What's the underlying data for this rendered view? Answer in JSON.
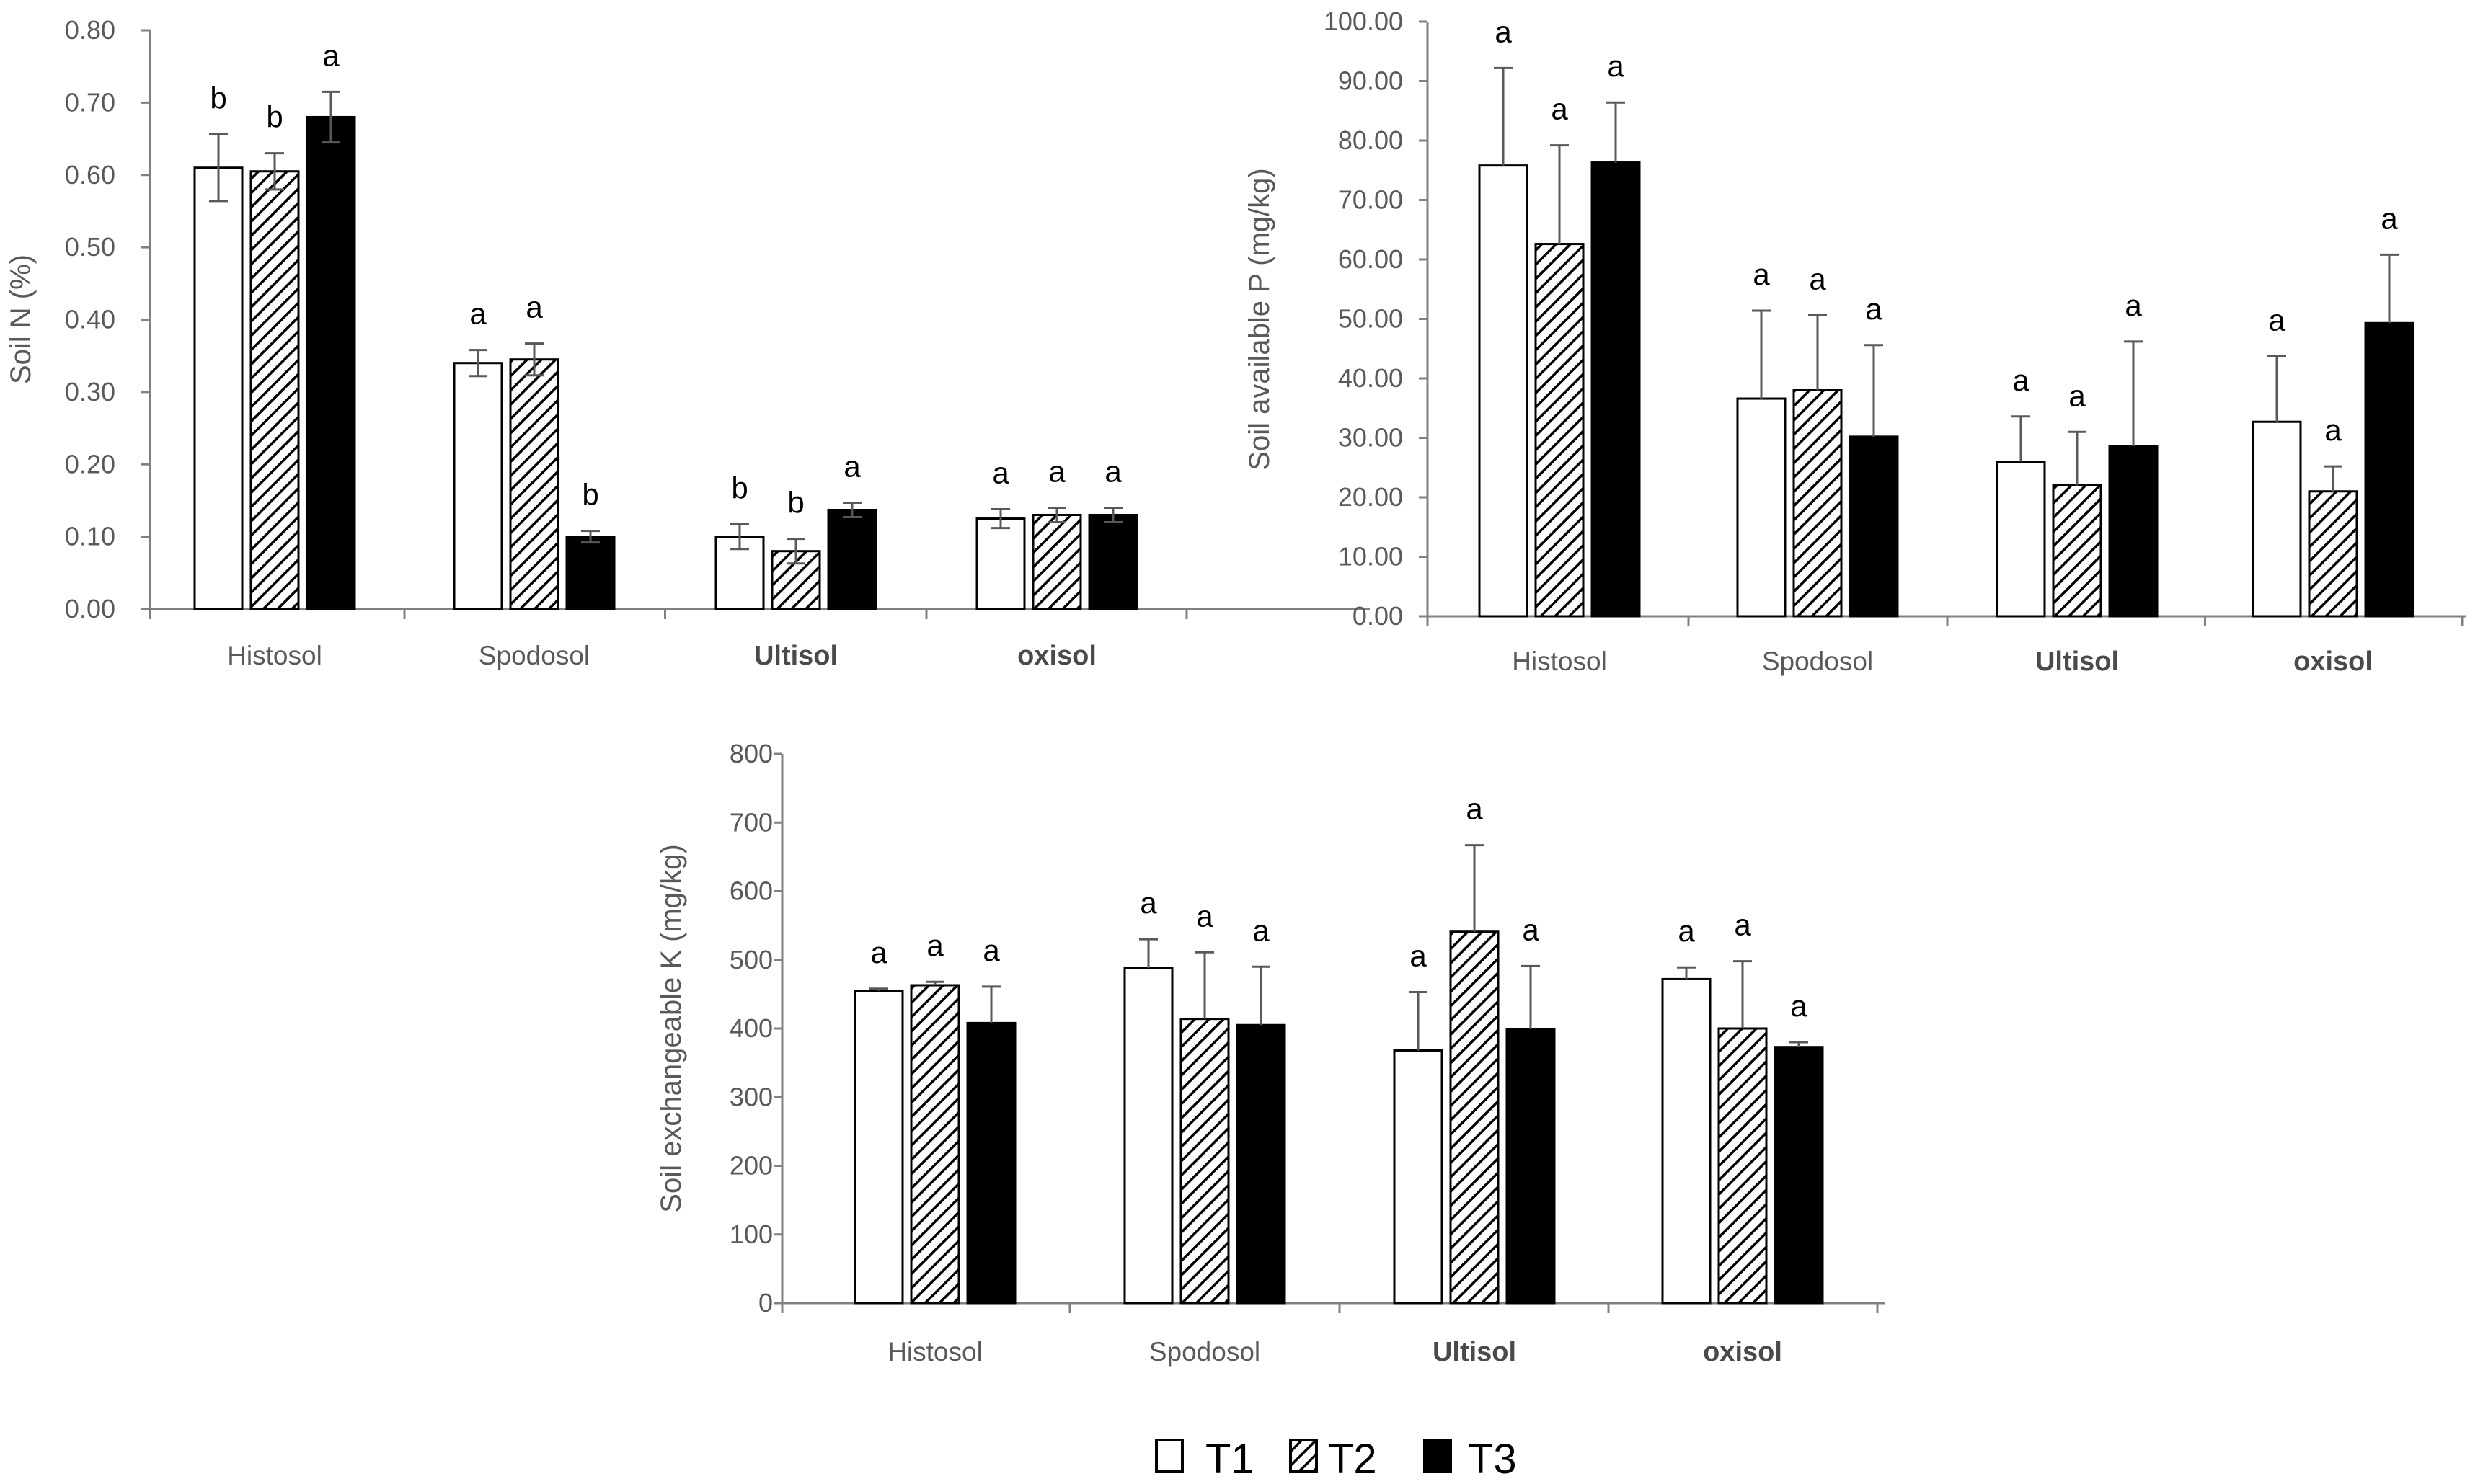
{
  "legend": [
    {
      "label": "T1",
      "fill": "white"
    },
    {
      "label": "T2",
      "fill": "hatch"
    },
    {
      "label": "T3",
      "fill": "black"
    }
  ],
  "colors": {
    "axis": "#808080",
    "text": "#595959",
    "bar_edge": "#000000",
    "t3": "#000000",
    "t1": "#ffffff"
  },
  "chart_data": [
    {
      "type": "bar",
      "id": "soil-n",
      "title": "",
      "ylabel": "Soil N (%)",
      "ylim": [
        0,
        0.8
      ],
      "ytick_step": 0.1,
      "ytick_decimals": 2,
      "categories": [
        "Histosol",
        "Spodosol",
        "Ultisol",
        "oxisol"
      ],
      "bold_categories": [
        "Ultisol",
        "oxisol"
      ],
      "series": [
        {
          "name": "T1",
          "values": [
            0.61,
            0.34,
            0.1,
            0.125
          ],
          "errors": [
            0.046,
            0.018,
            0.017,
            0.013
          ],
          "letters": [
            "b",
            "a",
            "b",
            "a"
          ]
        },
        {
          "name": "T2",
          "values": [
            0.605,
            0.345,
            0.08,
            0.13
          ],
          "errors": [
            0.025,
            0.022,
            0.017,
            0.01
          ],
          "letters": [
            "b",
            "a",
            "b",
            "a"
          ]
        },
        {
          "name": "T3",
          "values": [
            0.68,
            0.1,
            0.137,
            0.13
          ],
          "errors": [
            0.035,
            0.008,
            0.01,
            0.01
          ],
          "letters": [
            "a",
            "b",
            "a",
            "a"
          ]
        }
      ]
    },
    {
      "type": "bar",
      "id": "soil-p",
      "title": "",
      "ylabel": "Soil available P (mg/kg)",
      "ylim": [
        0,
        100
      ],
      "ytick_step": 10,
      "ytick_decimals": 2,
      "categories": [
        "Histosol",
        "Spodosol",
        "Ultisol",
        "oxisol"
      ],
      "bold_categories": [
        "Ultisol",
        "oxisol"
      ],
      "series": [
        {
          "name": "T1",
          "values": [
            75.8,
            36.6,
            26.0,
            32.7
          ],
          "errors": [
            16.4,
            14.8,
            7.6,
            11.0
          ],
          "letters": [
            "a",
            "a",
            "a",
            "a"
          ]
        },
        {
          "name": "T2",
          "values": [
            62.6,
            38.0,
            22.0,
            21.0
          ],
          "errors": [
            16.6,
            12.6,
            9.0,
            4.2
          ],
          "letters": [
            "a",
            "a",
            "a",
            "a"
          ]
        },
        {
          "name": "T3",
          "values": [
            76.3,
            30.2,
            28.6,
            49.3
          ],
          "errors": [
            10.1,
            15.4,
            17.6,
            11.5
          ],
          "letters": [
            "a",
            "a",
            "a",
            "a"
          ]
        }
      ]
    },
    {
      "type": "bar",
      "id": "soil-k",
      "title": "",
      "ylabel": "Soil exchangeable K (mg/kg)",
      "ylim": [
        0,
        800
      ],
      "ytick_step": 100,
      "ytick_decimals": 0,
      "categories": [
        "Histosol",
        "Spodosol",
        "Ultisol",
        "oxisol"
      ],
      "bold_categories": [
        "Ultisol",
        "oxisol"
      ],
      "series": [
        {
          "name": "T1",
          "values": [
            455,
            488,
            368,
            472
          ],
          "errors": [
            3,
            42,
            85,
            17
          ],
          "letters": [
            "a",
            "a",
            "a",
            "a"
          ]
        },
        {
          "name": "T2",
          "values": [
            463,
            414,
            541,
            400
          ],
          "errors": [
            5,
            97,
            126,
            98
          ],
          "letters": [
            "a",
            "a",
            "a",
            "a"
          ]
        },
        {
          "name": "T3",
          "values": [
            408,
            405,
            399,
            373
          ],
          "errors": [
            53,
            85,
            92,
            7
          ],
          "letters": [
            "a",
            "a",
            "a",
            "a"
          ]
        }
      ]
    }
  ]
}
